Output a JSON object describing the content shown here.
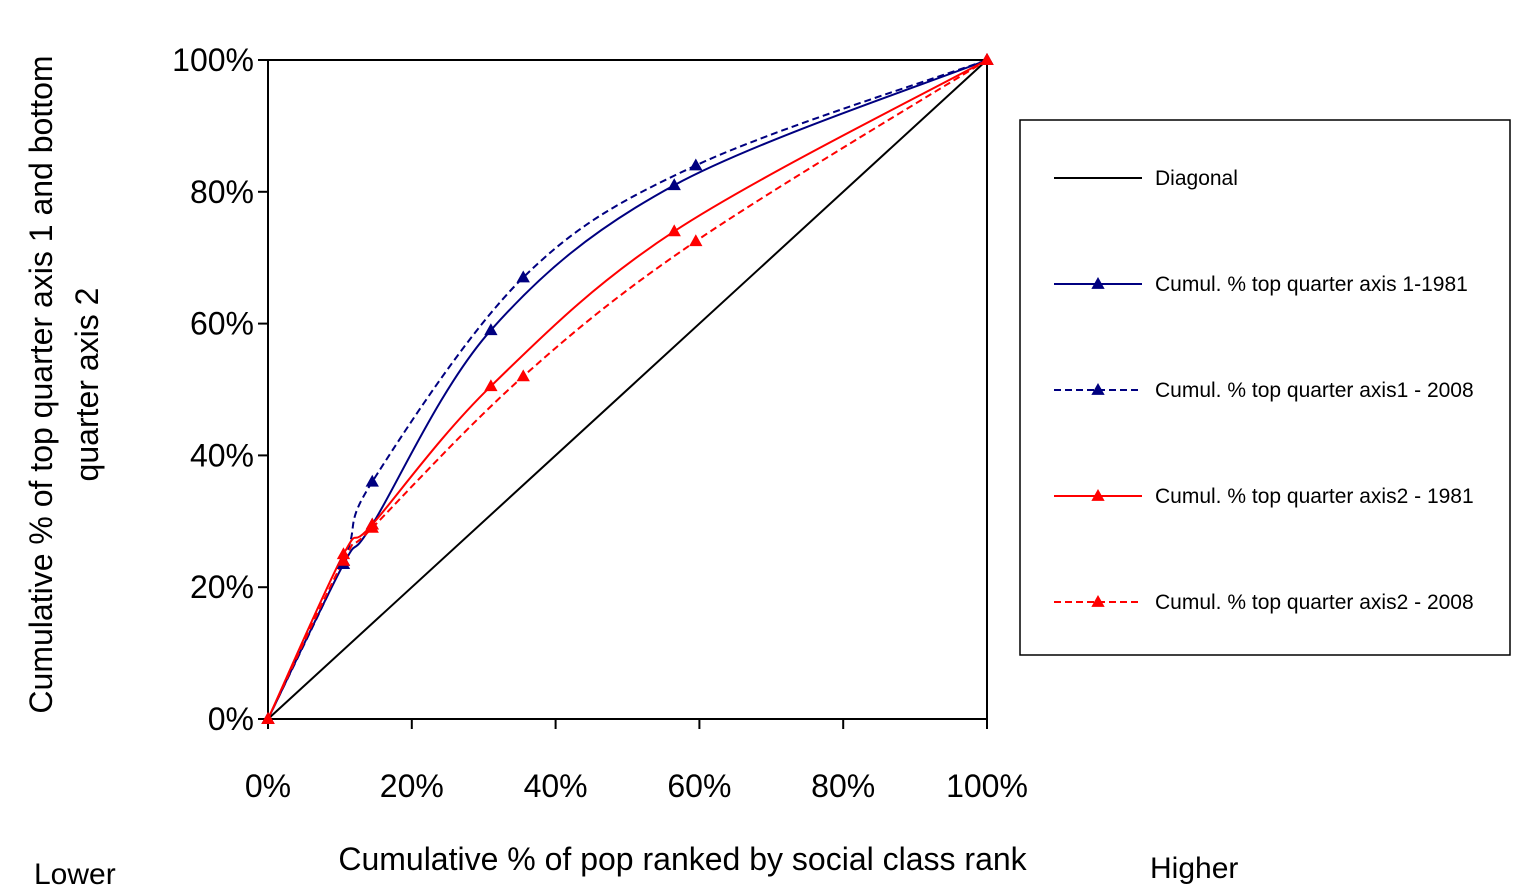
{
  "chart_data": {
    "type": "line",
    "xlabel": "Cumulative % of pop ranked by social class rank",
    "ylabel_line1": "Cumulative % of top quarter axis 1 and bottom",
    "ylabel_line2": "quarter axis 2",
    "xlim": [
      0,
      100
    ],
    "ylim": [
      0,
      100
    ],
    "x_ticks": [
      "0%",
      "20%",
      "40%",
      "60%",
      "80%",
      "100%"
    ],
    "y_ticks": [
      "0%",
      "20%",
      "40%",
      "60%",
      "80%",
      "100%"
    ],
    "grid": false,
    "legend_position": "right",
    "low_label": "Lower",
    "high_label": "Higher",
    "series": [
      {
        "name": "Diagonal",
        "color": "#000000",
        "dashed": false,
        "marker": false,
        "x": [
          0,
          100
        ],
        "y": [
          0,
          100
        ]
      },
      {
        "name": "Cumul. % top quarter axis 1-1981",
        "color": "#000080",
        "dashed": false,
        "marker": true,
        "x": [
          0,
          10.5,
          14.5,
          31,
          56.5,
          100
        ],
        "y": [
          0,
          23.5,
          29.5,
          59,
          81,
          100
        ]
      },
      {
        "name": "Cumul. % top quarter axis1 - 2008",
        "color": "#000080",
        "dashed": true,
        "marker": true,
        "x": [
          0,
          10.5,
          14.5,
          35.5,
          59.5,
          100
        ],
        "y": [
          0,
          24,
          36,
          67,
          84,
          100
        ]
      },
      {
        "name": "Cumul. % top quarter axis2 - 1981",
        "color": "#ff0000",
        "dashed": false,
        "marker": true,
        "x": [
          0,
          10.5,
          14.5,
          31,
          56.5,
          100
        ],
        "y": [
          0,
          25,
          29.5,
          50.5,
          74,
          100
        ]
      },
      {
        "name": "Cumul. % top quarter axis2 - 2008",
        "color": "#ff0000",
        "dashed": true,
        "marker": true,
        "x": [
          0,
          10.5,
          14.5,
          35.5,
          59.5,
          100
        ],
        "y": [
          0,
          24,
          29,
          52,
          72.5,
          100
        ]
      }
    ]
  }
}
